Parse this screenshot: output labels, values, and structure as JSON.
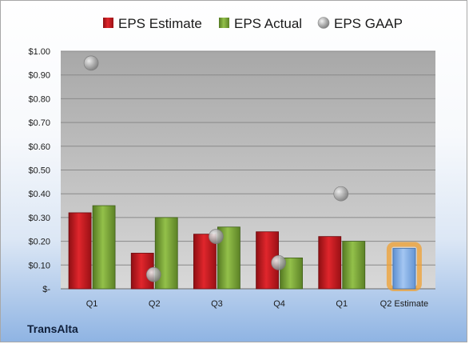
{
  "company": "TransAlta",
  "colors": {
    "estimate": "#c0161c",
    "actual": "#76a035",
    "gaap": "#a9a9a9",
    "future_estimate": "#7aa7e0",
    "future_glow": "#f0a030"
  },
  "chart_data": {
    "type": "bar",
    "title": "",
    "xlabel": "",
    "ylabel": "",
    "ylim": [
      0,
      1.0
    ],
    "yticks": [
      {
        "value": 0.0,
        "label": "$-"
      },
      {
        "value": 0.1,
        "label": "$0.10"
      },
      {
        "value": 0.2,
        "label": "$0.20"
      },
      {
        "value": 0.3,
        "label": "$0.30"
      },
      {
        "value": 0.4,
        "label": "$0.40"
      },
      {
        "value": 0.5,
        "label": "$0.50"
      },
      {
        "value": 0.6,
        "label": "$0.60"
      },
      {
        "value": 0.7,
        "label": "$0.70"
      },
      {
        "value": 0.8,
        "label": "$0.80"
      },
      {
        "value": 0.9,
        "label": "$0.90"
      },
      {
        "value": 1.0,
        "label": "$1.00"
      }
    ],
    "categories": [
      "Q1",
      "Q2",
      "Q3",
      "Q4",
      "Q1",
      "Q2 Estimate"
    ],
    "legend_position": "top",
    "grid": true,
    "series": [
      {
        "name": "EPS Estimate",
        "values": [
          0.32,
          0.15,
          0.23,
          0.24,
          0.22,
          0.17
        ]
      },
      {
        "name": "EPS Actual",
        "values": [
          0.35,
          0.3,
          0.26,
          0.13,
          0.2,
          null
        ]
      },
      {
        "name": "EPS GAAP",
        "values": [
          0.95,
          0.06,
          0.22,
          0.11,
          0.4,
          null
        ]
      }
    ]
  }
}
